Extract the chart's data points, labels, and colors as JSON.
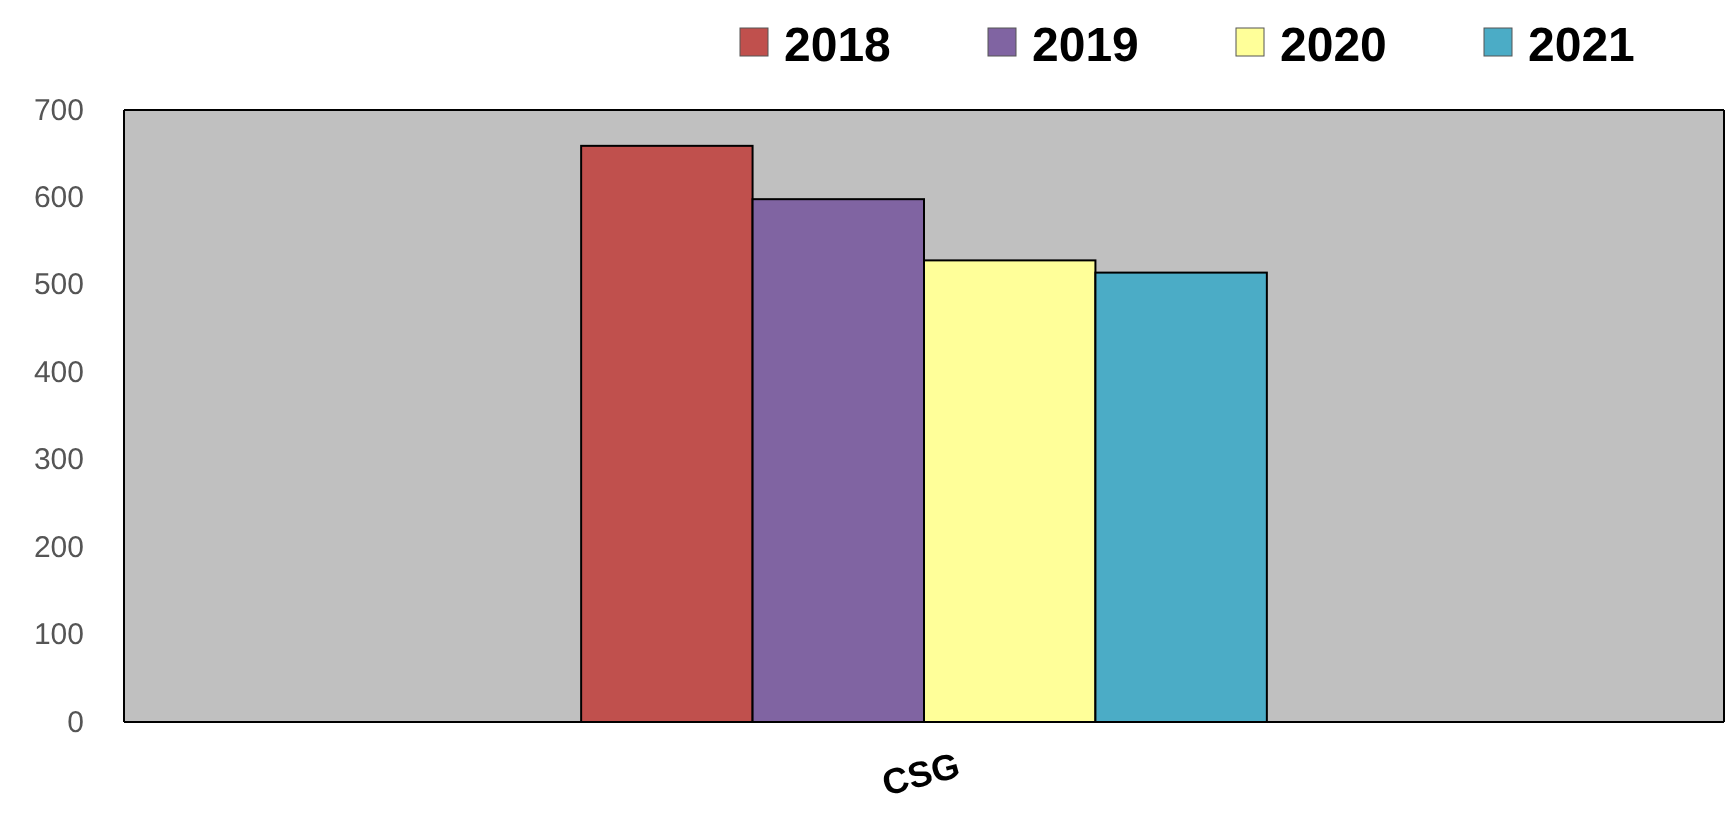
{
  "chart_data": {
    "type": "bar",
    "categories": [
      "CSG"
    ],
    "series": [
      {
        "name": "2018",
        "color": "#c0504d",
        "values": [
          659
        ]
      },
      {
        "name": "2019",
        "color": "#8064a2",
        "values": [
          598
        ]
      },
      {
        "name": "2020",
        "color": "#ffff99",
        "values": [
          528
        ]
      },
      {
        "name": "2021",
        "color": "#4bacc6",
        "values": [
          514
        ]
      }
    ],
    "ylim": [
      0,
      700
    ],
    "yticks": [
      0,
      100,
      200,
      300,
      400,
      500,
      600,
      700
    ],
    "grid": false,
    "legend": "top right"
  }
}
